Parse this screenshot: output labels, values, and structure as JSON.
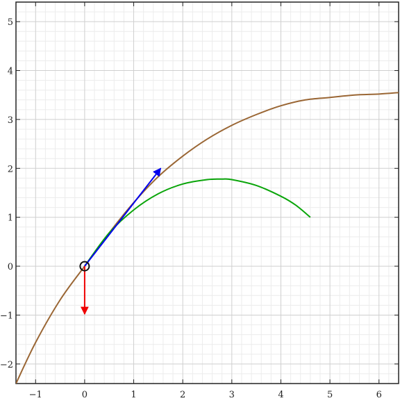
{
  "chart_data": {
    "type": "line",
    "title": "",
    "xlabel": "",
    "ylabel": "",
    "xlim": [
      -1.4,
      6.4
    ],
    "ylim": [
      -2.4,
      5.4
    ],
    "grid": true,
    "x_ticks": [
      -1,
      0,
      1,
      2,
      3,
      4,
      5,
      6
    ],
    "y_ticks": [
      -2,
      -1,
      0,
      1,
      2,
      3,
      4,
      5
    ],
    "x_tick_labels": [
      "−1",
      "0",
      "1",
      "2",
      "3",
      "4",
      "5",
      "6"
    ],
    "y_tick_labels": [
      "−2",
      "−1",
      "0",
      "1",
      "2",
      "3",
      "4",
      "5"
    ],
    "series": [
      {
        "color": "#9a6634",
        "points": [
          [
            -1.4,
            -2.4
          ],
          [
            -1.0,
            -1.56
          ],
          [
            -0.5,
            -0.69
          ],
          [
            0.0,
            0.0
          ],
          [
            0.5,
            0.68
          ],
          [
            1.0,
            1.3
          ],
          [
            1.5,
            1.83
          ],
          [
            2.0,
            2.25
          ],
          [
            2.5,
            2.6
          ],
          [
            3.0,
            2.88
          ],
          [
            3.5,
            3.1
          ],
          [
            4.0,
            3.28
          ],
          [
            4.5,
            3.4
          ],
          [
            5.0,
            3.45
          ],
          [
            5.5,
            3.5
          ],
          [
            6.0,
            3.52
          ],
          [
            6.4,
            3.55
          ]
        ]
      },
      {
        "color": "#0aa50a",
        "points": [
          [
            0.0,
            0.0
          ],
          [
            0.5,
            0.68
          ],
          [
            1.0,
            1.15
          ],
          [
            1.5,
            1.48
          ],
          [
            2.0,
            1.68
          ],
          [
            2.5,
            1.77
          ],
          [
            2.8,
            1.78
          ],
          [
            3.0,
            1.77
          ],
          [
            3.5,
            1.65
          ],
          [
            4.0,
            1.43
          ],
          [
            4.3,
            1.25
          ],
          [
            4.6,
            1.0
          ]
        ]
      }
    ],
    "vectors": [
      {
        "color": "#0000ee",
        "from": [
          0,
          0
        ],
        "to": [
          1.55,
          2.0
        ]
      },
      {
        "color": "#ee0000",
        "from": [
          0,
          0
        ],
        "to": [
          0,
          -0.98
        ]
      }
    ],
    "point_marker": {
      "at": [
        0,
        0
      ],
      "shape": "open-circle",
      "color": "#111111"
    }
  }
}
